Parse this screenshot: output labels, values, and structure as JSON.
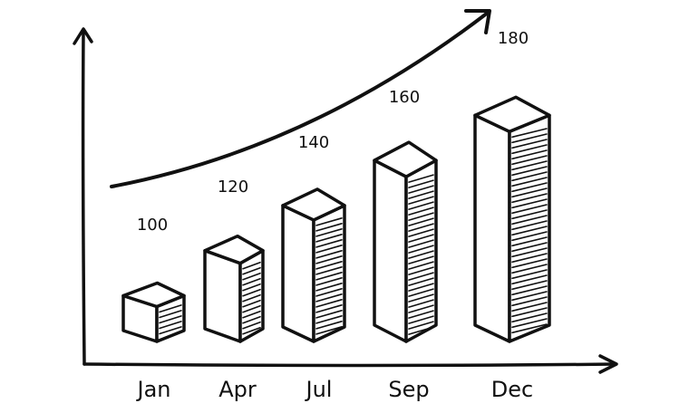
{
  "chart_data": {
    "type": "bar",
    "style": "hand-drawn 3D bars with hatched side faces",
    "categories": [
      "Jan",
      "Apr",
      "Jul",
      "Sep",
      "Dec"
    ],
    "values": [
      100,
      120,
      140,
      160,
      180
    ],
    "data_labels": [
      "100",
      "120",
      "140",
      "160",
      "180"
    ],
    "title": "",
    "xlabel": "",
    "ylabel": "",
    "ylim": [
      0,
      200
    ],
    "grid": false,
    "legend": "none",
    "trend_arrow": "rising curved arrow above bars",
    "colors": {
      "ink": "#111111",
      "background": "#ffffff"
    }
  }
}
